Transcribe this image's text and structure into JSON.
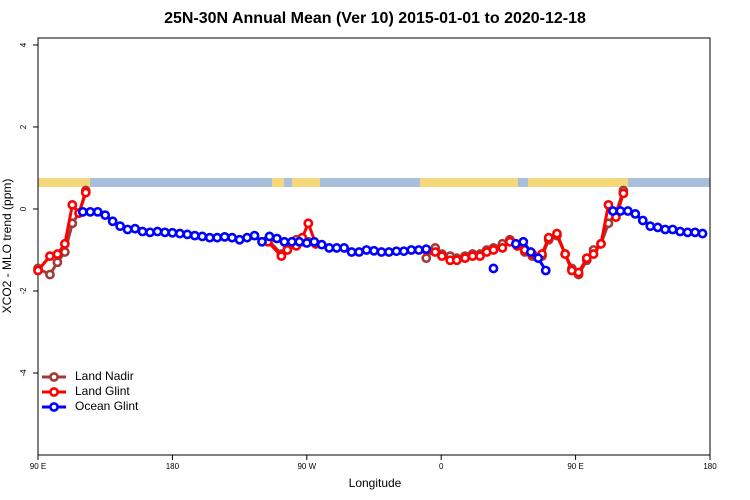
{
  "chart_data": {
    "type": "line",
    "title": "25N-30N Annual Mean (Ver 10)   2015-01-01 to 2020-12-18",
    "x_label": "Longitude",
    "y_label": "XCO2 - MLO trend (ppm)",
    "xlim": [
      90,
      540
    ],
    "ylim": [
      -6,
      4.17
    ],
    "xticks": [
      {
        "value": 90,
        "label": "90 E"
      },
      {
        "value": 180,
        "label": "180"
      },
      {
        "value": 270,
        "label": "90 W"
      },
      {
        "value": 360,
        "label": "0"
      },
      {
        "value": 450,
        "label": "90 E"
      },
      {
        "value": 540,
        "label": "180"
      }
    ],
    "yticks": [
      4,
      2,
      0,
      -2,
      -4
    ],
    "legend": "bottomleft",
    "series": [
      {
        "name": "Land Nadir",
        "color": "#a33a3a",
        "x": [
          90,
          98,
          103,
          108,
          113,
          117.5,
          122,
          180,
          244,
          253,
          257,
          263,
          267,
          271,
          276,
          310,
          350,
          356,
          360.5,
          366,
          370.5,
          376,
          381,
          386,
          390.5,
          395,
          401,
          406,
          411,
          416,
          421,
          427.5,
          432,
          437.5,
          443,
          447.5,
          452,
          457.5,
          462,
          467,
          472,
          477,
          482
        ],
        "values": [
          -1.45,
          -1.6,
          -1.3,
          -1.05,
          -0.35,
          -0.1,
          0.45,
          null,
          -0.75,
          -1.1,
          -0.95,
          -0.75,
          -0.8,
          -0.8,
          -0.85,
          null,
          -1.2,
          -0.95,
          -1.1,
          -1.15,
          -1.2,
          -1.15,
          -1.1,
          -1.1,
          -1.0,
          -0.95,
          -0.85,
          -0.75,
          -0.9,
          -1.05,
          -1.15,
          -1.15,
          -0.75,
          -0.65,
          -1.1,
          -1.45,
          -1.6,
          -1.25,
          -1.0,
          -0.85,
          -0.35,
          -0.1,
          0.45
        ]
      },
      {
        "name": "Land Glint",
        "color": "#ff0000",
        "x": [
          90,
          98,
          103,
          108,
          113,
          117.5,
          122,
          180,
          244,
          253,
          257,
          263,
          267,
          271,
          276,
          310,
          350,
          356,
          360.5,
          366,
          370.5,
          376,
          381,
          386,
          390.5,
          395,
          401,
          406,
          411,
          416,
          421,
          427.5,
          432,
          437.5,
          443,
          447.5,
          452,
          457.5,
          462,
          467,
          472,
          477,
          482
        ],
        "values": [
          -1.5,
          -1.15,
          -1.1,
          -0.85,
          0.1,
          -0.1,
          0.4,
          null,
          -0.8,
          -1.15,
          -1.0,
          -0.9,
          -0.7,
          -0.35,
          -0.85,
          null,
          -1.0,
          -1.05,
          -1.15,
          -1.25,
          -1.25,
          -1.2,
          -1.15,
          -1.15,
          -1.05,
          -1.0,
          -0.95,
          -0.8,
          -0.9,
          -1.0,
          -1.1,
          -1.1,
          -0.7,
          -0.6,
          -1.1,
          -1.5,
          -1.55,
          -1.2,
          -1.1,
          -0.85,
          0.1,
          -0.2,
          0.38
        ]
      },
      {
        "name": "Ocean Glint",
        "color": "#0000ff",
        "x": [
          120,
          125,
          130,
          135,
          140,
          145,
          150,
          155,
          160,
          165,
          170,
          175,
          180,
          185,
          190,
          195,
          200,
          205,
          210,
          215,
          220,
          225,
          230,
          235,
          240,
          245,
          250,
          255,
          260,
          265,
          270,
          275,
          280,
          285,
          290,
          295,
          300,
          305,
          310,
          315,
          320,
          325,
          330,
          335,
          340,
          345,
          350,
          355,
          395,
          400,
          410,
          415,
          420,
          425,
          430,
          435,
          475,
          480,
          485,
          490,
          495,
          500,
          505,
          510,
          515,
          520,
          525,
          530,
          535
        ],
        "values": [
          -0.07,
          -0.07,
          -0.07,
          -0.15,
          -0.3,
          -0.42,
          -0.5,
          -0.48,
          -0.55,
          -0.57,
          -0.55,
          -0.57,
          -0.58,
          -0.6,
          -0.62,
          -0.65,
          -0.67,
          -0.7,
          -0.7,
          -0.68,
          -0.7,
          -0.75,
          -0.7,
          -0.65,
          -0.8,
          -0.67,
          -0.72,
          -0.8,
          -0.8,
          -0.8,
          -0.83,
          -0.8,
          -0.87,
          -0.95,
          -0.95,
          -0.95,
          -1.05,
          -1.05,
          -1.0,
          -1.02,
          -1.05,
          -1.05,
          -1.03,
          -1.03,
          -1.0,
          -1.0,
          -0.98,
          null,
          -1.45,
          null,
          -0.85,
          -0.8,
          -1.05,
          -1.2,
          -1.5,
          null,
          -0.05,
          -0.05,
          -0.05,
          -0.12,
          -0.28,
          -0.42,
          -0.45,
          -0.5,
          -0.5,
          -0.55,
          -0.57,
          -0.57,
          -0.6
        ]
      }
    ]
  }
}
